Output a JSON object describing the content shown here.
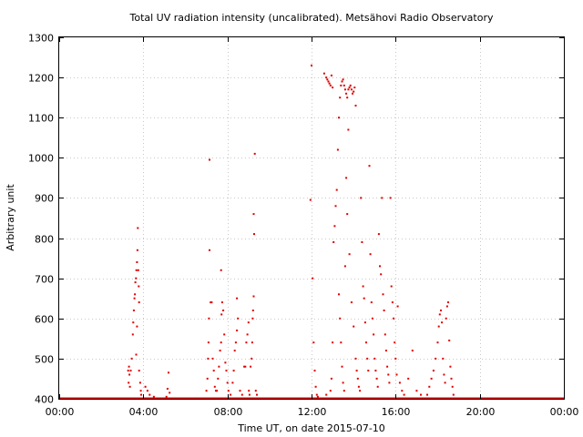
{
  "chart_data": {
    "type": "scatter",
    "title": "Total UV radiation intensity (uncalibrated). Metsähovi Radio Observatory",
    "xlabel": "Time UT, on date 2015-07-10",
    "ylabel": "Arbitrary unit",
    "xlim": [
      0,
      24
    ],
    "ylim": [
      400,
      1300
    ],
    "x_unit": "hours UT",
    "x_ticks": [
      {
        "value": 0,
        "label": "00:00"
      },
      {
        "value": 4,
        "label": "04:00"
      },
      {
        "value": 8,
        "label": "08:00"
      },
      {
        "value": 12,
        "label": "12:00"
      },
      {
        "value": 16,
        "label": "16:00"
      },
      {
        "value": 20,
        "label": "20:00"
      },
      {
        "value": 24,
        "label": "00:00"
      }
    ],
    "y_ticks": [
      {
        "value": 400,
        "label": "400"
      },
      {
        "value": 500,
        "label": "500"
      },
      {
        "value": 600,
        "label": "600"
      },
      {
        "value": 700,
        "label": "700"
      },
      {
        "value": 800,
        "label": "800"
      },
      {
        "value": 900,
        "label": "900"
      },
      {
        "value": 1000,
        "label": "1000"
      },
      {
        "value": 1100,
        "label": "1100"
      },
      {
        "value": 1200,
        "label": "1200"
      },
      {
        "value": 1300,
        "label": "1300"
      }
    ],
    "grid": true,
    "marker_color": "#e00000",
    "baseline": {
      "y": 400,
      "x_range": [
        0,
        24
      ]
    },
    "points": [
      [
        3.28,
        470
      ],
      [
        3.3,
        440
      ],
      [
        3.32,
        480
      ],
      [
        3.34,
        460
      ],
      [
        3.36,
        430
      ],
      [
        3.4,
        470
      ],
      [
        3.45,
        500
      ],
      [
        3.5,
        560
      ],
      [
        3.52,
        590
      ],
      [
        3.55,
        620
      ],
      [
        3.58,
        650
      ],
      [
        3.6,
        660
      ],
      [
        3.62,
        690
      ],
      [
        3.65,
        700
      ],
      [
        3.67,
        720
      ],
      [
        3.7,
        740
      ],
      [
        3.72,
        770
      ],
      [
        3.74,
        825
      ],
      [
        3.76,
        720
      ],
      [
        3.78,
        680
      ],
      [
        3.8,
        640
      ],
      [
        3.7,
        580
      ],
      [
        3.66,
        510
      ],
      [
        3.8,
        470
      ],
      [
        3.85,
        440
      ],
      [
        3.88,
        420
      ],
      [
        3.9,
        410
      ],
      [
        4.1,
        430
      ],
      [
        4.2,
        420
      ],
      [
        4.3,
        410
      ],
      [
        4.5,
        405
      ],
      [
        5.1,
        405
      ],
      [
        5.15,
        425
      ],
      [
        5.2,
        465
      ],
      [
        5.25,
        415
      ],
      [
        7.0,
        420
      ],
      [
        7.05,
        450
      ],
      [
        7.08,
        500
      ],
      [
        7.1,
        540
      ],
      [
        7.12,
        600
      ],
      [
        7.15,
        995
      ],
      [
        7.15,
        770
      ],
      [
        7.2,
        640
      ],
      [
        7.25,
        640
      ],
      [
        7.3,
        500
      ],
      [
        7.35,
        470
      ],
      [
        7.4,
        430
      ],
      [
        7.45,
        420
      ],
      [
        7.5,
        420
      ],
      [
        7.55,
        450
      ],
      [
        7.6,
        480
      ],
      [
        7.65,
        520
      ],
      [
        7.7,
        540
      ],
      [
        7.72,
        610
      ],
      [
        7.75,
        640
      ],
      [
        7.8,
        620
      ],
      [
        7.7,
        720
      ],
      [
        7.85,
        560
      ],
      [
        7.9,
        490
      ],
      [
        7.95,
        470
      ],
      [
        8.0,
        440
      ],
      [
        8.05,
        420
      ],
      [
        8.15,
        410
      ],
      [
        8.25,
        440
      ],
      [
        8.3,
        470
      ],
      [
        8.35,
        520
      ],
      [
        8.4,
        540
      ],
      [
        8.45,
        570
      ],
      [
        8.5,
        600
      ],
      [
        8.45,
        650
      ],
      [
        8.6,
        420
      ],
      [
        8.7,
        410
      ],
      [
        8.8,
        480
      ],
      [
        8.85,
        480
      ],
      [
        8.9,
        540
      ],
      [
        8.95,
        560
      ],
      [
        9.0,
        590
      ],
      [
        9.02,
        420
      ],
      [
        9.05,
        410
      ],
      [
        9.1,
        480
      ],
      [
        9.15,
        500
      ],
      [
        9.18,
        540
      ],
      [
        9.2,
        600
      ],
      [
        9.22,
        620
      ],
      [
        9.25,
        655
      ],
      [
        9.25,
        860
      ],
      [
        9.27,
        810
      ],
      [
        9.3,
        1010
      ],
      [
        9.35,
        420
      ],
      [
        9.4,
        410
      ],
      [
        11.95,
        895
      ],
      [
        12.0,
        1230
      ],
      [
        12.05,
        700
      ],
      [
        12.1,
        540
      ],
      [
        12.15,
        470
      ],
      [
        12.2,
        430
      ],
      [
        12.25,
        410
      ],
      [
        12.3,
        405
      ],
      [
        12.7,
        410
      ],
      [
        12.9,
        420
      ],
      [
        12.95,
        450
      ],
      [
        13.0,
        540
      ],
      [
        13.05,
        790
      ],
      [
        13.1,
        830
      ],
      [
        13.15,
        880
      ],
      [
        13.2,
        920
      ],
      [
        13.25,
        1020
      ],
      [
        13.3,
        1100
      ],
      [
        13.35,
        1150
      ],
      [
        13.4,
        1180
      ],
      [
        13.45,
        1190
      ],
      [
        13.5,
        1195
      ],
      [
        13.55,
        1180
      ],
      [
        13.6,
        1170
      ],
      [
        13.65,
        1160
      ],
      [
        13.7,
        1150
      ],
      [
        13.75,
        1170
      ],
      [
        13.8,
        1175
      ],
      [
        13.85,
        1180
      ],
      [
        13.9,
        1170
      ],
      [
        13.95,
        1160
      ],
      [
        14.0,
        1165
      ],
      [
        14.05,
        1175
      ],
      [
        14.1,
        1130
      ],
      [
        12.6,
        1210
      ],
      [
        12.7,
        1200
      ],
      [
        12.75,
        1195
      ],
      [
        12.8,
        1190
      ],
      [
        12.85,
        1185
      ],
      [
        12.9,
        1180
      ],
      [
        13.0,
        1175
      ],
      [
        12.95,
        1205
      ],
      [
        13.3,
        660
      ],
      [
        13.35,
        600
      ],
      [
        13.4,
        540
      ],
      [
        13.45,
        480
      ],
      [
        13.5,
        440
      ],
      [
        13.55,
        420
      ],
      [
        13.6,
        730
      ],
      [
        13.65,
        950
      ],
      [
        13.7,
        860
      ],
      [
        13.75,
        1070
      ],
      [
        13.8,
        760
      ],
      [
        13.9,
        640
      ],
      [
        14.0,
        580
      ],
      [
        14.1,
        500
      ],
      [
        14.15,
        470
      ],
      [
        14.2,
        450
      ],
      [
        14.25,
        430
      ],
      [
        14.3,
        420
      ],
      [
        14.35,
        900
      ],
      [
        14.4,
        790
      ],
      [
        14.45,
        680
      ],
      [
        14.5,
        650
      ],
      [
        14.55,
        590
      ],
      [
        14.6,
        540
      ],
      [
        14.65,
        500
      ],
      [
        14.7,
        470
      ],
      [
        14.75,
        980
      ],
      [
        14.8,
        760
      ],
      [
        14.85,
        640
      ],
      [
        14.9,
        600
      ],
      [
        14.95,
        560
      ],
      [
        15.0,
        500
      ],
      [
        15.05,
        470
      ],
      [
        15.1,
        450
      ],
      [
        15.15,
        430
      ],
      [
        15.2,
        810
      ],
      [
        15.25,
        730
      ],
      [
        15.3,
        710
      ],
      [
        15.35,
        900
      ],
      [
        15.4,
        660
      ],
      [
        15.45,
        620
      ],
      [
        15.5,
        560
      ],
      [
        15.55,
        520
      ],
      [
        15.6,
        480
      ],
      [
        15.65,
        460
      ],
      [
        15.7,
        440
      ],
      [
        15.75,
        900
      ],
      [
        15.8,
        680
      ],
      [
        15.85,
        640
      ],
      [
        15.9,
        600
      ],
      [
        15.95,
        540
      ],
      [
        16.0,
        500
      ],
      [
        16.05,
        460
      ],
      [
        16.1,
        630
      ],
      [
        16.2,
        440
      ],
      [
        16.3,
        420
      ],
      [
        16.4,
        410
      ],
      [
        16.6,
        450
      ],
      [
        16.8,
        520
      ],
      [
        17.0,
        420
      ],
      [
        17.2,
        410
      ],
      [
        17.5,
        410
      ],
      [
        17.6,
        430
      ],
      [
        17.7,
        450
      ],
      [
        17.8,
        470
      ],
      [
        17.9,
        500
      ],
      [
        18.0,
        540
      ],
      [
        18.05,
        580
      ],
      [
        18.1,
        610
      ],
      [
        18.15,
        620
      ],
      [
        18.2,
        590
      ],
      [
        18.25,
        500
      ],
      [
        18.3,
        460
      ],
      [
        18.35,
        440
      ],
      [
        18.4,
        600
      ],
      [
        18.45,
        630
      ],
      [
        18.5,
        640
      ],
      [
        18.55,
        545
      ],
      [
        18.6,
        480
      ],
      [
        18.65,
        450
      ],
      [
        18.7,
        430
      ],
      [
        18.75,
        410
      ]
    ]
  }
}
